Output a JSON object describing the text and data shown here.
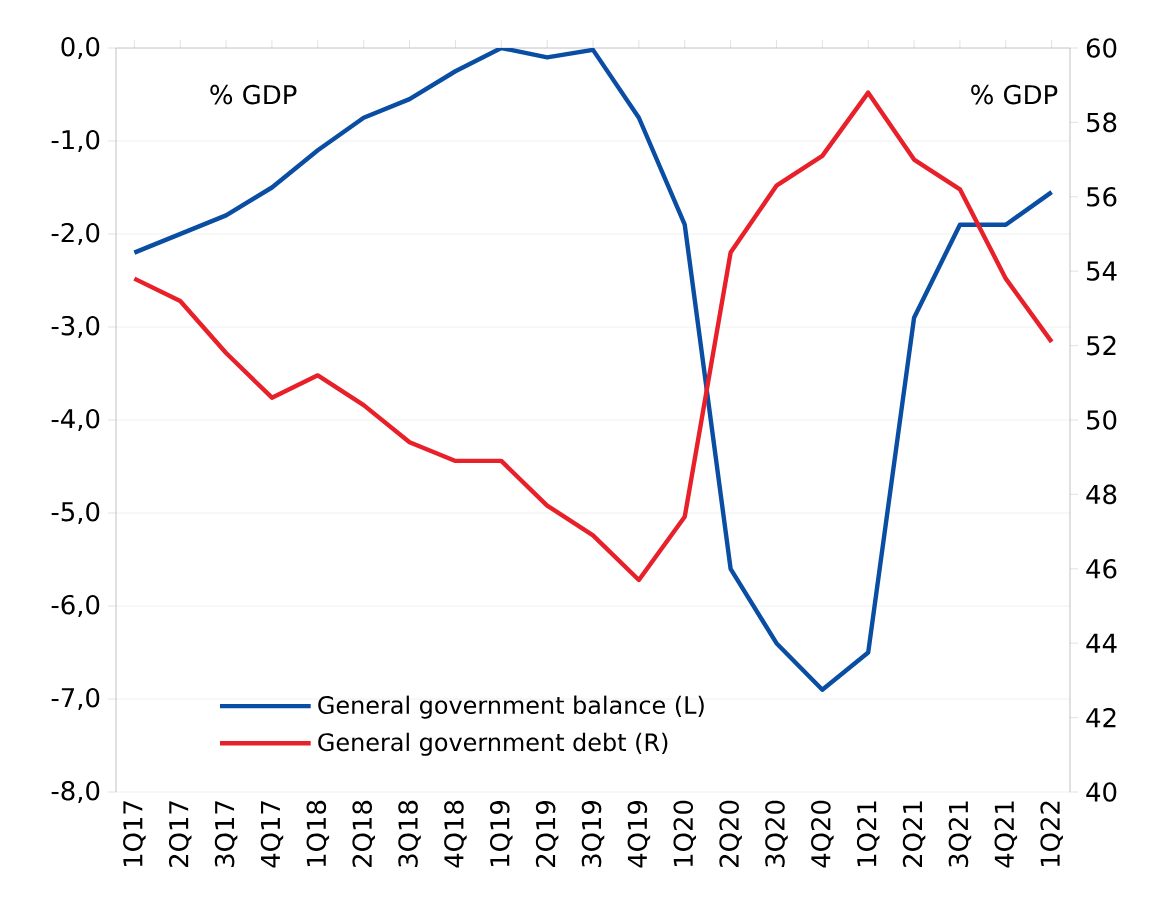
{
  "chart_data": {
    "type": "line",
    "categories": [
      "1Q17",
      "2Q17",
      "3Q17",
      "4Q17",
      "1Q18",
      "2Q18",
      "3Q18",
      "4Q18",
      "1Q19",
      "2Q19",
      "3Q19",
      "4Q19",
      "1Q20",
      "2Q20",
      "3Q20",
      "4Q20",
      "1Q21",
      "2Q21",
      "3Q21",
      "4Q21",
      "1Q22"
    ],
    "series": [
      {
        "name": "General government balance (L)",
        "color": "#0a4ea3",
        "axis": "y",
        "values": [
          -2.2,
          -2.0,
          -1.8,
          -1.5,
          -1.1,
          -0.75,
          -0.55,
          -0.25,
          0.0,
          -0.1,
          -0.02,
          -0.75,
          -1.9,
          -5.6,
          -6.4,
          -6.9,
          -6.5,
          -2.9,
          -1.9,
          -1.9,
          -1.55
        ]
      },
      {
        "name": "General government debt (R)",
        "color": "#e8202a",
        "axis": "y2",
        "values": [
          53.8,
          53.2,
          51.8,
          50.6,
          51.2,
          50.4,
          49.4,
          48.9,
          48.9,
          47.7,
          46.9,
          45.7,
          47.4,
          54.5,
          56.3,
          57.1,
          58.8,
          57.0,
          56.2,
          53.8,
          52.1
        ]
      }
    ],
    "ylabel": "% GDP",
    "y2label": "% GDP",
    "ylim": [
      -8,
      0
    ],
    "yticks": [
      {
        "value": -8,
        "label": "-8,0"
      },
      {
        "value": -7,
        "label": "-7,0"
      },
      {
        "value": -6,
        "label": "-6,0"
      },
      {
        "value": -5,
        "label": "-5,0"
      },
      {
        "value": -4,
        "label": "-4,0"
      },
      {
        "value": -3,
        "label": "-3,0"
      },
      {
        "value": -2,
        "label": "-2,0"
      },
      {
        "value": -1,
        "label": "-1,0"
      },
      {
        "value": 0,
        "label": "0,0"
      }
    ],
    "y2lim": [
      40,
      60
    ],
    "y2ticks": [
      40,
      42,
      44,
      46,
      48,
      50,
      52,
      54,
      56,
      58,
      60
    ],
    "grid": "y",
    "legend": "bottom left"
  }
}
